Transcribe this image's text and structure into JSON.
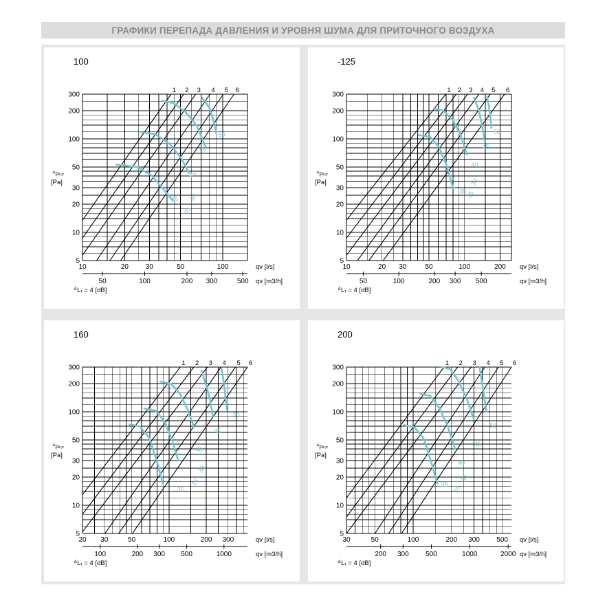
{
  "page": {
    "title": "ГРАФИКИ ПЕРЕПАДА ДАВЛЕНИЯ И УРОВНЯ ШУМА ДЛЯ ПРИТОЧНОГО ВОЗДУХА"
  },
  "colors": {
    "curve": "#6cc7d3",
    "grid": "#000000",
    "background": "#e6e6e6",
    "title_bg": "#dcdcdc",
    "title_text": "#8a8a8a"
  },
  "chart_data": [
    {
      "type": "line",
      "title": "100",
      "x_scale": "log",
      "y_scale": "log",
      "xlim": [
        10,
        150
      ],
      "ylim": [
        5,
        300
      ],
      "y_ticks": [
        5,
        10,
        20,
        30,
        50,
        100,
        200,
        300
      ],
      "x_ticks_ls": [
        10,
        20,
        30,
        50,
        100
      ],
      "x_tick_labels_ls": [
        "10",
        "20",
        "30",
        "50",
        "100"
      ],
      "x_ticks_m3h": [
        50,
        100,
        200,
        300,
        500
      ],
      "xlabel_ls": "qv [l/s]",
      "xlabel_m3h": "qv [m3/h]",
      "ylabel_top": "ᐞpₜₒₜ",
      "ylabel_bottom": "[Pa]",
      "dl_label": "ᐞLᵣ = 4 [dB]",
      "system_lines": [
        {
          "name": "1",
          "q": [
            10,
            42.8
          ],
          "p": [
            13.5,
            300
          ]
        },
        {
          "name": "2",
          "q": [
            10,
            52.6
          ],
          "p": [
            8.7,
            300
          ]
        },
        {
          "name": "3",
          "q": [
            10,
            64.1
          ],
          "p": [
            5.7,
            300
          ]
        },
        {
          "name": "4",
          "q": [
            12.6,
            81.0
          ],
          "p": [
            5,
            300
          ]
        },
        {
          "name": "5",
          "q": [
            15.7,
            100.8
          ],
          "p": [
            5,
            300
          ]
        },
        {
          "name": "6",
          "q": [
            18.7,
            120.2
          ],
          "p": [
            5,
            300
          ]
        }
      ],
      "fan_curves": [
        {
          "q": [
            37.2,
            44.7,
            54.0,
            65.3,
            75.4
          ],
          "p": [
            255,
            240,
            195,
            138,
            82
          ]
        },
        {
          "q": [
            26.0,
            33.0,
            42.0,
            50.5,
            57.6
          ],
          "p": [
            118,
            112,
            88,
            62,
            43
          ]
        },
        {
          "q": [
            17.5,
            24.6,
            31.5,
            37.6,
            44.0
          ],
          "p": [
            53,
            50,
            40,
            29,
            22
          ]
        },
        {
          "q": [
            71.3,
            80.2,
            85.5,
            89.8
          ],
          "p": [
            275,
            215,
            160,
            115
          ]
        }
      ],
      "noise_values": [
        {
          "q": 93.0,
          "p": 105,
          "label": "50"
        },
        {
          "q": 68.2,
          "p": 73,
          "label": "45"
        },
        {
          "q": 57.6,
          "p": 39,
          "label": "40"
        },
        {
          "q": 43.0,
          "p": 21.5,
          "label": "35"
        },
        {
          "q": 56.1,
          "p": 15.5,
          "label": "25",
          "rotate": -58
        },
        {
          "q": 61.3,
          "p": 21.5,
          "label": "30",
          "rotate": -58
        }
      ]
    },
    {
      "type": "line",
      "title": "-125",
      "x_scale": "log",
      "y_scale": "log",
      "xlim": [
        10,
        250
      ],
      "ylim": [
        5,
        300
      ],
      "y_ticks": [
        5,
        10,
        20,
        30,
        50,
        100,
        200,
        300
      ],
      "x_ticks_ls": [
        10,
        20,
        30,
        50,
        100,
        200
      ],
      "x_tick_labels_ls": [
        "10",
        "20",
        "30",
        "50",
        "100",
        "200"
      ],
      "x_ticks_m3h": [
        50,
        100,
        200,
        300,
        500
      ],
      "xlabel_ls": "qv [l/s]",
      "xlabel_m3h": "qv [m3/h]",
      "ylabel_top": "ᐞpₜₒₜ",
      "ylabel_bottom": "[Pa]",
      "dl_label": "ᐞLᵣ = 4 [dB]",
      "system_lines": [
        {
          "name": "1",
          "q": [
            10,
            69.3
          ],
          "p": [
            13.5,
            300
          ]
        },
        {
          "name": "2",
          "q": [
            10,
            85.3
          ],
          "p": [
            8.7,
            300
          ]
        },
        {
          "name": "3",
          "q": [
            10,
            106.2
          ],
          "p": [
            5.7,
            300
          ]
        },
        {
          "name": "4",
          "q": [
            12.4,
            132.6
          ],
          "p": [
            5,
            300
          ]
        },
        {
          "name": "5",
          "q": [
            15.5,
            165.2
          ],
          "p": [
            5,
            300
          ]
        },
        {
          "name": "6",
          "q": [
            20.5,
            218.5
          ],
          "p": [
            5,
            300
          ]
        }
      ],
      "fan_curves": [
        {
          "q": [
            55.0,
            66.3,
            79.9,
            92.8,
            104.8
          ],
          "p": [
            210,
            200,
            158,
            110,
            68
          ]
        },
        {
          "q": [
            40.8,
            51.0,
            60.8,
            70.5,
            79.9
          ],
          "p": [
            110,
            105,
            82,
            52,
            30
          ]
        },
        {
          "q": [
            120.2,
            131.8,
            140.9,
            148.3
          ],
          "p": [
            275,
            205,
            140,
            95
          ]
        },
        {
          "q": [
            155.6,
            160.9,
            165.2,
            169.4
          ],
          "p": [
            280,
            225,
            175,
            130
          ]
        }
      ],
      "noise_values": [
        {
          "q": 176.1,
          "p": 112,
          "label": "50"
        },
        {
          "q": 141.7,
          "p": 78,
          "label": "45"
        },
        {
          "q": 113.7,
          "p": 50,
          "label": "40"
        },
        {
          "q": 90.7,
          "p": 26,
          "label": "35"
        },
        {
          "q": 111.1,
          "p": 23,
          "label": "25",
          "rotate": -58
        },
        {
          "q": 120.9,
          "p": 31,
          "label": "30",
          "rotate": -58
        }
      ]
    },
    {
      "type": "line",
      "title": "160",
      "x_scale": "log",
      "y_scale": "log",
      "xlim": [
        20,
        430
      ],
      "ylim": [
        5,
        300
      ],
      "y_ticks": [
        5,
        10,
        20,
        30,
        50,
        100,
        200,
        300
      ],
      "x_ticks_ls": [
        20,
        30,
        50,
        100,
        200,
        300
      ],
      "x_tick_labels_ls": [
        "20",
        "30",
        "50",
        "100",
        "200",
        "300"
      ],
      "x_ticks_m3h": [
        100,
        200,
        300,
        500,
        1000
      ],
      "xlabel_ls": "qv [l/s]",
      "xlabel_m3h": "qv [m3/h]",
      "ylabel_top": "ᐞpₜₒₜ",
      "ylabel_bottom": "[Pa]",
      "dl_label": "ᐞLᵣ = 4 [dB]",
      "system_lines": [
        {
          "name": "1",
          "q": [
            20,
            123.2
          ],
          "p": [
            13,
            300
          ]
        },
        {
          "name": "2",
          "q": [
            20,
            158.6
          ],
          "p": [
            8,
            300
          ]
        },
        {
          "name": "3",
          "q": [
            20,
            204.0
          ],
          "p": [
            5.2,
            300
          ]
        },
        {
          "name": "4",
          "q": [
            30.4,
            263.0
          ],
          "p": [
            5,
            300
          ]
        },
        {
          "name": "5",
          "q": [
            39.2,
            344.0
          ],
          "p": [
            5,
            300
          ]
        },
        {
          "name": "6",
          "q": [
            50.6,
            430.0
          ],
          "p": [
            5,
            300
          ]
        }
      ],
      "fan_curves": [
        {
          "q": [
            85.1,
            103.2,
            122.6,
            141.5,
            159.0
          ],
          "p": [
            210,
            200,
            155,
            105,
            68
          ]
        },
        {
          "q": [
            63.2,
            77.4,
            92.5,
            106.8,
            118.6
          ],
          "p": [
            108,
            103,
            78,
            48,
            30
          ]
        },
        {
          "q": [
            48.1,
            57.9,
            69.6,
            80.1,
            89.2
          ],
          "p": [
            73,
            70,
            52,
            29,
            17
          ]
        },
        {
          "q": [
            182.8,
            199.6,
            214.3,
            225.6
          ],
          "p": [
            275,
            190,
            135,
            90
          ]
        },
        {
          "q": [
            265.6,
            276.4,
            285.4,
            294.1
          ],
          "p": [
            285,
            210,
            145,
            105
          ]
        }
      ],
      "noise_values": [
        {
          "q": 327.7,
          "p": 87,
          "label": "50"
        },
        {
          "q": 229.3,
          "p": 59,
          "label": "45"
        },
        {
          "q": 164.5,
          "p": 37,
          "label": "40"
        },
        {
          "q": 116.4,
          "p": 14,
          "label": "35"
        },
        {
          "q": 161.5,
          "p": 16,
          "label": "25",
          "rotate": -58
        },
        {
          "q": 182.8,
          "p": 22,
          "label": "30",
          "rotate": -58
        }
      ]
    },
    {
      "type": "line",
      "title": "200",
      "x_scale": "log",
      "y_scale": "log",
      "xlim": [
        30,
        590
      ],
      "ylim": [
        5,
        300
      ],
      "y_ticks": [
        5,
        10,
        20,
        30,
        50,
        100,
        200,
        300
      ],
      "x_ticks_ls": [
        30,
        50,
        100,
        200,
        300,
        500
      ],
      "x_tick_labels_ls": [
        "30",
        "50",
        "100",
        "200",
        "300",
        "500"
      ],
      "x_ticks_m3h": [
        200,
        300,
        500,
        1000,
        2000
      ],
      "x_tick_labels_m3h": [
        "200",
        "300",
        "500",
        "1000",
        "2000"
      ],
      "xlabel_ls": "qv [l/s]",
      "xlabel_m3h": "qv [m3/h]",
      "ylabel_top": "ᐞpₜₒₜ",
      "ylabel_bottom": "[Pa]",
      "dl_label": "ᐞLᵣ = 4 [dB]",
      "system_lines": [
        {
          "name": "1",
          "q": [
            30,
            174.5
          ],
          "p": [
            12,
            300
          ]
        },
        {
          "name": "2",
          "q": [
            30,
            223.1
          ],
          "p": [
            7.5,
            300
          ]
        },
        {
          "name": "3",
          "q": [
            30,
            285.3
          ],
          "p": [
            5,
            300
          ]
        },
        {
          "name": "4",
          "q": [
            50.2,
            365.1
          ],
          "p": [
            5,
            300
          ]
        },
        {
          "name": "5",
          "q": [
            64.3,
            466.9
          ],
          "p": [
            5,
            300
          ]
        },
        {
          "name": "6",
          "q": [
            81.2,
            590.0
          ],
          "p": [
            5,
            300
          ]
        }
      ],
      "fan_curves": [
        {
          "q": [
            168.3,
            195.0,
            225.9,
            261.6,
            297.8
          ],
          "p": [
            300,
            285,
            215,
            140,
            85
          ]
        },
        {
          "q": [
            114.0,
            136.2,
            160.0,
            186.8,
            213.1
          ],
          "p": [
            155,
            148,
            110,
            70,
            40
          ]
        },
        {
          "q": [
            84.9,
            102.7,
            120.7,
            137.6,
            154.7
          ],
          "p": [
            72,
            68,
            52,
            30,
            17
          ]
        },
        {
          "q": [
            332.6,
            347.8,
            361.5,
            376.1
          ],
          "p": [
            295,
            200,
            140,
            100
          ]
        }
      ],
      "noise_values": [
        {
          "q": 397.6,
          "p": 67,
          "label": "50"
        },
        {
          "q": 301.7,
          "p": 43,
          "label": "45"
        },
        {
          "q": 224.3,
          "p": 27,
          "label": "40"
        },
        {
          "q": 165.1,
          "p": 16,
          "label": "35"
        },
        {
          "q": 222.7,
          "p": 13.5,
          "label": "25",
          "rotate": -58
        },
        {
          "q": 252.2,
          "p": 17.5,
          "label": "30",
          "rotate": -58
        }
      ]
    }
  ]
}
